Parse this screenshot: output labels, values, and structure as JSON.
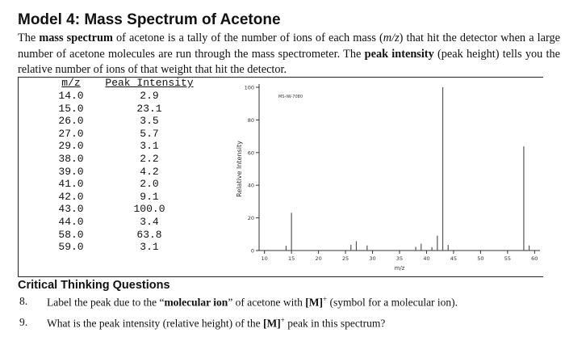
{
  "title": "Model 4: Mass Spectrum of Acetone",
  "intro": {
    "parts": [
      {
        "text": "The "
      },
      {
        "text": "mass spectrum",
        "style": "b"
      },
      {
        "text": " of acetone is a tally of the number of ions of each mass ("
      },
      {
        "text": "m/z",
        "style": "i"
      },
      {
        "text": ") that hit the detector when a large number of acetone molecules are run through the mass spectrometer. The "
      },
      {
        "text": "peak intensity",
        "style": "b"
      },
      {
        "text": " (peak height) tells you the relative number of ions of that weight that hit the detector."
      }
    ]
  },
  "table": {
    "header": [
      "m/z",
      "Peak Intensity"
    ],
    "rows": [
      [
        "14.0",
        "2.9"
      ],
      [
        "15.0",
        "23.1"
      ],
      [
        "26.0",
        "3.5"
      ],
      [
        "27.0",
        "5.7"
      ],
      [
        "29.0",
        "3.1"
      ],
      [
        "38.0",
        "2.2"
      ],
      [
        "39.0",
        "4.2"
      ],
      [
        "41.0",
        "2.0"
      ],
      [
        "42.0",
        "9.1"
      ],
      [
        "43.0",
        "100.0"
      ],
      [
        "44.0",
        "3.4"
      ],
      [
        "58.0",
        "63.8"
      ],
      [
        "59.0",
        "3.1"
      ]
    ]
  },
  "chart_data": {
    "type": "bar",
    "label": "MS-IW-7080",
    "x_label": "m/z",
    "y_label": "Relative Intensity",
    "x": [
      14,
      15,
      26,
      27,
      29,
      38,
      39,
      41,
      42,
      43,
      44,
      58,
      59
    ],
    "values": [
      2.9,
      23.1,
      3.5,
      5.7,
      3.1,
      2.2,
      4.2,
      2.0,
      9.1,
      100.0,
      3.4,
      63.8,
      3.1
    ],
    "color": "#555555",
    "xlim": [
      9,
      61
    ],
    "ylim": [
      0,
      100
    ],
    "xticks": [
      10,
      15,
      20,
      25,
      30,
      35,
      40,
      45,
      50,
      55,
      60
    ],
    "yticks": [
      0,
      20,
      40,
      60,
      80,
      100
    ]
  },
  "questions_heading": "Critical Thinking Questions",
  "questions": [
    {
      "number": "8.",
      "parts": [
        {
          "text": "Label the peak due to the “"
        },
        {
          "text": "molecular ion",
          "style": "b"
        },
        {
          "text": "” of acetone with "
        },
        {
          "text": "[M]",
          "style": "b"
        },
        {
          "text": "+",
          "style": "sup"
        },
        {
          "text": " (symbol for a molecular ion)."
        }
      ]
    },
    {
      "number": "9.",
      "parts": [
        {
          "text": "What is the peak intensity (relative height) of the "
        },
        {
          "text": "[M]",
          "style": "b"
        },
        {
          "text": "+",
          "style": "sup"
        },
        {
          "text": " peak in this spectrum?"
        }
      ]
    }
  ]
}
